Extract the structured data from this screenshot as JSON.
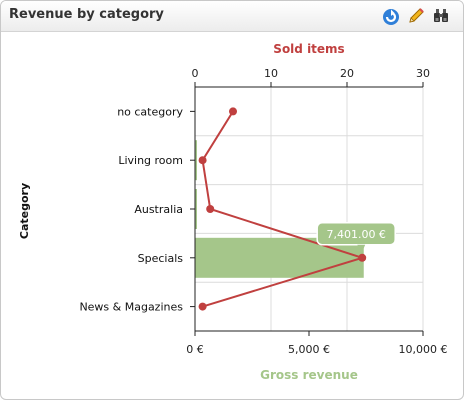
{
  "header": {
    "title": "Revenue by category",
    "icons": [
      "refresh-icon",
      "edit-pencil-icon",
      "binoculars-icon"
    ]
  },
  "chart_data": {
    "type": "bar",
    "orientation": "horizontal",
    "categories": [
      "no category",
      "Living room",
      "Australia",
      "Specials",
      "News & Magazines"
    ],
    "series": [
      {
        "name": "Gross revenue",
        "type": "bar",
        "axis": "bottom",
        "color": "#a5c68a",
        "values": [
          0,
          30,
          20,
          7401,
          0
        ]
      },
      {
        "name": "Sold items",
        "type": "line",
        "axis": "top",
        "color": "#c0403f",
        "values": [
          5,
          1,
          2,
          22,
          1
        ]
      }
    ],
    "ylabel": "Category",
    "top_axis": {
      "label": "Sold items",
      "range": [
        0,
        30
      ],
      "ticks": [
        "0",
        "10",
        "20",
        "30"
      ]
    },
    "bottom_axis": {
      "label": "Gross revenue",
      "range": [
        0,
        10000
      ],
      "ticks": [
        "0 €",
        "5,000 €",
        "10,000 €"
      ]
    },
    "tooltip": {
      "category": "Specials",
      "text": "7,401.00 €"
    },
    "grid": true
  }
}
